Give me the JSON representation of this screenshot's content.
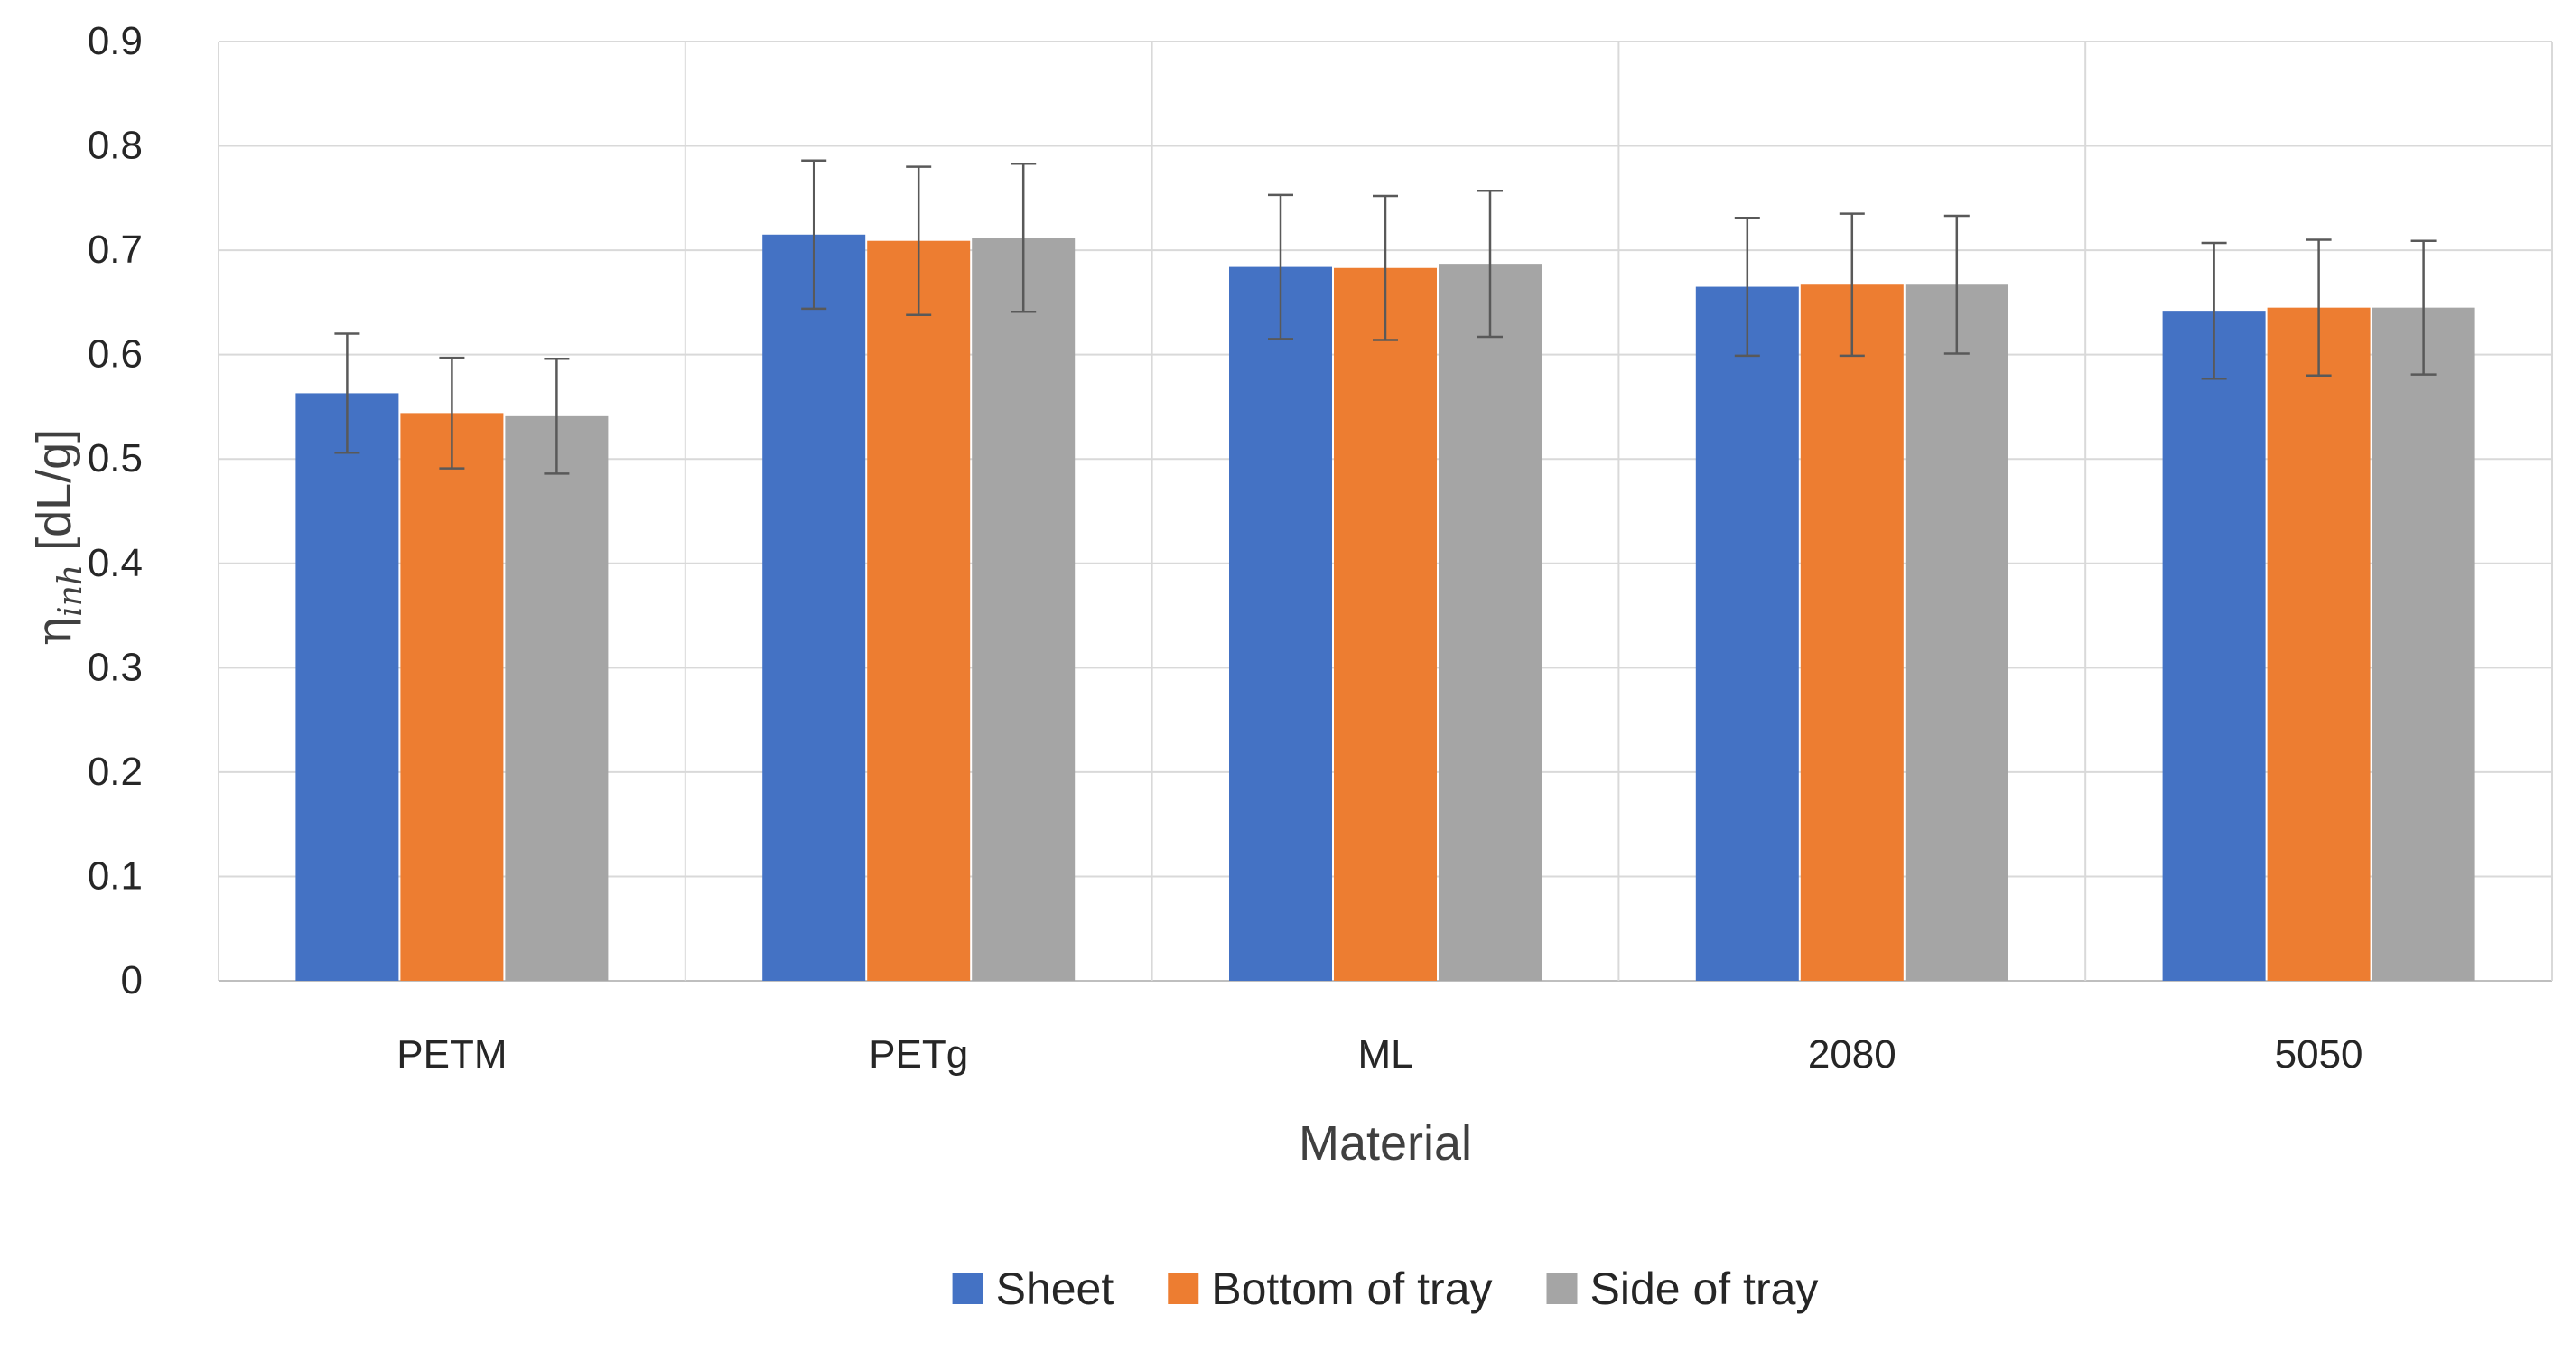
{
  "chart_data": {
    "type": "bar",
    "title": "",
    "xlabel": "Material",
    "ylabel": {
      "symbol": "η",
      "subscript": "inh",
      "unit": " [dL/g]"
    },
    "ylim": [
      0,
      0.9
    ],
    "yticks": [
      "0",
      "0.1",
      "0.2",
      "0.3",
      "0.4",
      "0.5",
      "0.6",
      "0.7",
      "0.8",
      "0.9"
    ],
    "grid": true,
    "legend_position": "bottom-center",
    "categories": [
      "PETM",
      "PETg",
      "ML",
      "2080",
      "5050"
    ],
    "series": [
      {
        "name": "Sheet",
        "color": "#4472C4",
        "values": [
          0.563,
          0.715,
          0.684,
          0.665,
          0.642
        ],
        "errors": [
          0.057,
          0.071,
          0.069,
          0.066,
          0.065
        ]
      },
      {
        "name": "Bottom of tray",
        "color": "#ED7D31",
        "values": [
          0.544,
          0.709,
          0.683,
          0.667,
          0.645
        ],
        "errors": [
          0.053,
          0.071,
          0.069,
          0.068,
          0.065
        ]
      },
      {
        "name": "Side of tray",
        "color": "#A5A5A5",
        "values": [
          0.541,
          0.712,
          0.687,
          0.667,
          0.645
        ],
        "errors": [
          0.055,
          0.071,
          0.07,
          0.066,
          0.064
        ]
      }
    ]
  }
}
